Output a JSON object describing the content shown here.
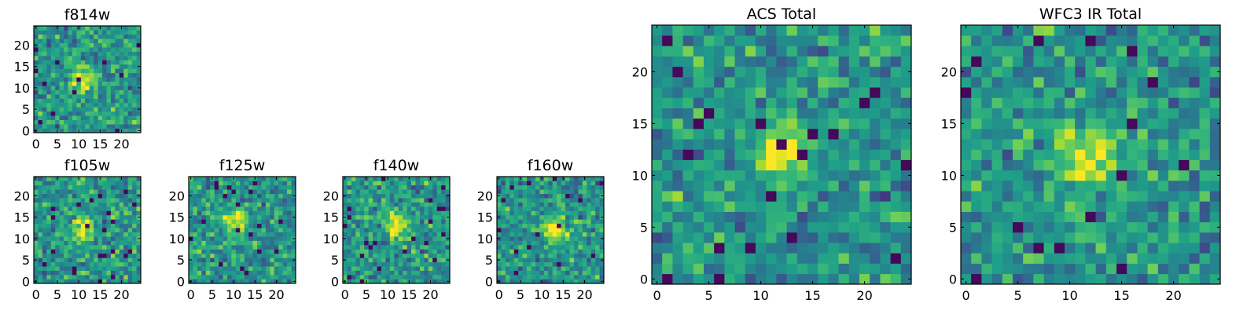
{
  "figure": {
    "grid_size": 25,
    "colormap": "viridis"
  },
  "chart_data": [
    {
      "type": "heatmap",
      "title": "f814w",
      "seed": 11,
      "center": [
        11,
        12
      ],
      "xticks": [
        0,
        5,
        10,
        15,
        20
      ],
      "yticks": [
        0,
        5,
        10,
        15,
        20
      ],
      "xlim": [
        -0.5,
        24.5
      ],
      "ylim": [
        -0.5,
        24.5
      ]
    },
    {
      "type": "heatmap",
      "title": "f105w",
      "seed": 23,
      "center": [
        11,
        12
      ],
      "xticks": [
        0,
        5,
        10,
        15,
        20
      ],
      "yticks": [
        0,
        5,
        10,
        15,
        20
      ],
      "xlim": [
        -0.5,
        24.5
      ],
      "ylim": [
        -0.5,
        24.5
      ]
    },
    {
      "type": "heatmap",
      "title": "f125w",
      "seed": 37,
      "center": [
        10,
        14
      ],
      "xticks": [
        0,
        5,
        10,
        15,
        20
      ],
      "yticks": [
        0,
        5,
        10,
        15,
        20
      ],
      "xlim": [
        -0.5,
        24.5
      ],
      "ylim": [
        -0.5,
        24.5
      ]
    },
    {
      "type": "heatmap",
      "title": "f140w",
      "seed": 41,
      "center": [
        12,
        13
      ],
      "xticks": [
        0,
        5,
        10,
        15,
        20
      ],
      "yticks": [
        0,
        5,
        10,
        15,
        20
      ],
      "xlim": [
        -0.5,
        24.5
      ],
      "ylim": [
        -0.5,
        24.5
      ]
    },
    {
      "type": "heatmap",
      "title": "f160w",
      "seed": 53,
      "center": [
        13,
        12
      ],
      "xticks": [
        0,
        5,
        10,
        15,
        20
      ],
      "yticks": [
        0,
        5,
        10,
        15,
        20
      ],
      "xlim": [
        -0.5,
        24.5
      ],
      "ylim": [
        -0.5,
        24.5
      ]
    },
    {
      "type": "heatmap",
      "title": "ACS Total",
      "seed": 67,
      "center": [
        12,
        12
      ],
      "xticks": [
        0,
        5,
        10,
        15,
        20
      ],
      "yticks": [
        0,
        5,
        10,
        15,
        20
      ],
      "xlim": [
        -0.5,
        24.5
      ],
      "ylim": [
        -0.5,
        24.5
      ]
    },
    {
      "type": "heatmap",
      "title": "WFC3 IR Total",
      "seed": 79,
      "center": [
        12,
        12
      ],
      "xticks": [
        0,
        5,
        10,
        15,
        20
      ],
      "yticks": [
        0,
        5,
        10,
        15,
        20
      ],
      "xlim": [
        -0.5,
        24.5
      ],
      "ylim": [
        -0.5,
        24.5
      ]
    }
  ]
}
